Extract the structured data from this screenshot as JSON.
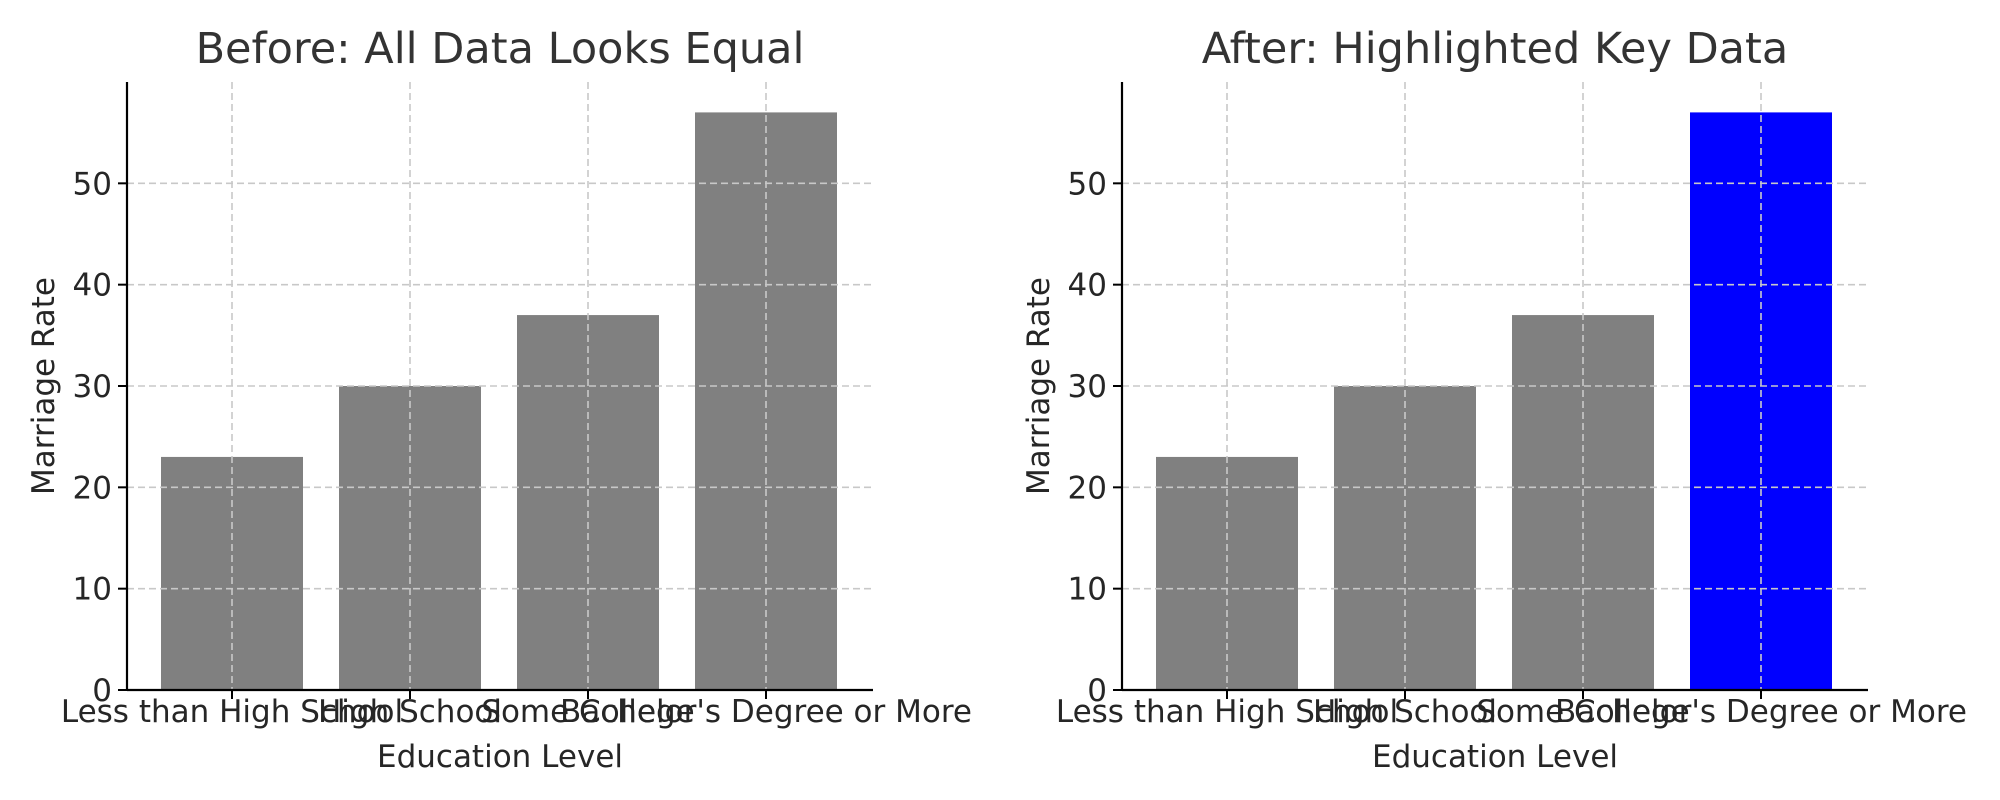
{
  "chart_data": [
    {
      "type": "bar",
      "title": "Before: All Data Looks Equal",
      "xlabel": "Education Level",
      "ylabel": "Marriage Rate",
      "categories": [
        "Less than High School",
        "High School",
        "Some College",
        "Bachelor's Degree or More"
      ],
      "values": [
        23,
        30,
        37,
        57
      ],
      "bar_colors": [
        "#808080",
        "#808080",
        "#808080",
        "#808080"
      ],
      "ylim": [
        0,
        60
      ],
      "yticks": [
        0,
        10,
        20,
        30,
        40,
        50
      ],
      "grid": true,
      "legend": "none"
    },
    {
      "type": "bar",
      "title": "After: Highlighted Key Data",
      "xlabel": "Education Level",
      "ylabel": "Marriage Rate",
      "categories": [
        "Less than High School",
        "High School",
        "Some College",
        "Bachelor's Degree or More"
      ],
      "values": [
        23,
        30,
        37,
        57
      ],
      "bar_colors": [
        "#808080",
        "#808080",
        "#808080",
        "#0000ff"
      ],
      "ylim": [
        0,
        60
      ],
      "yticks": [
        0,
        10,
        20,
        30,
        40,
        50
      ],
      "grid": true,
      "legend": "none"
    }
  ]
}
